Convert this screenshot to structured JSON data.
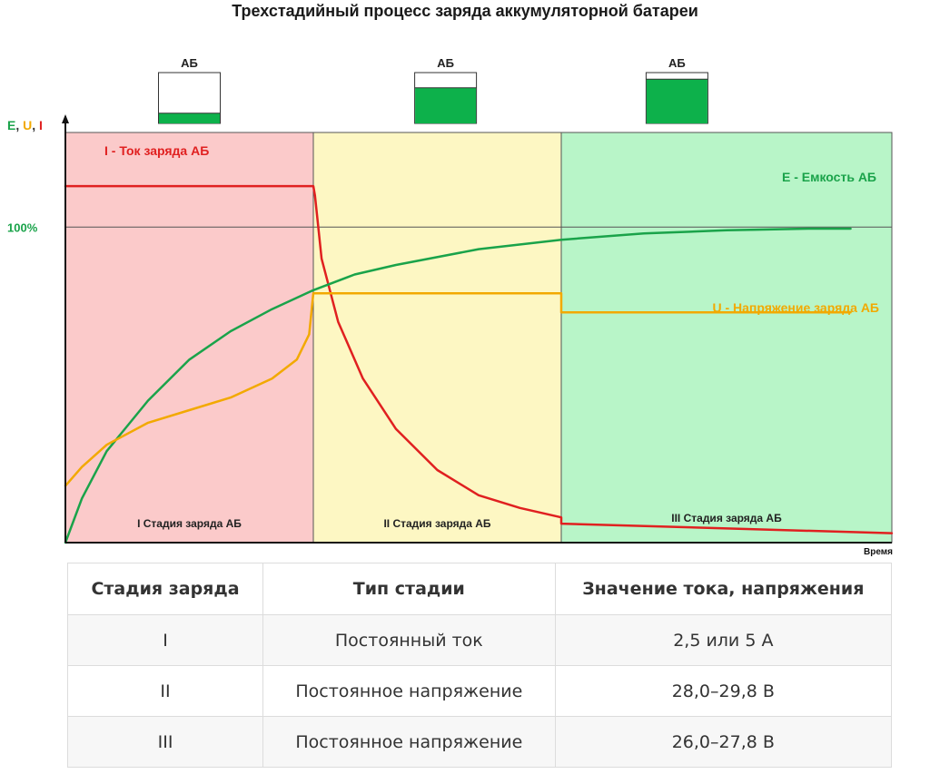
{
  "title": "Трехстадийный процесс заряда аккумуляторной батареи",
  "chart_data": {
    "type": "line",
    "title": "Трехстадийный процесс заряда аккумуляторной батареи",
    "xlabel": "Время",
    "y_axis_label_parts": [
      {
        "text": "E",
        "color": "#1aa34a"
      },
      {
        "text": ", ",
        "color": "#333333"
      },
      {
        "text": "U",
        "color": "#f2a900"
      },
      {
        "text": ", ",
        "color": "#333333"
      },
      {
        "text": "I",
        "color": "#e02020"
      }
    ],
    "y_tick_label": "100%",
    "y_tick_value": 100,
    "xlim": [
      0,
      100
    ],
    "ylim": [
      0,
      130
    ],
    "stages": [
      {
        "label": "I Стадия заряда АБ",
        "x_start": 0,
        "x_end": 30,
        "color": "#fbcaca"
      },
      {
        "label": "II Стадия заряда АБ",
        "x_start": 30,
        "x_end": 60,
        "color": "#fdf7c3"
      },
      {
        "label": "III Стадия заряда АБ",
        "x_start": 60,
        "x_end": 100,
        "color": "#b8f5c8"
      }
    ],
    "battery_icons": [
      {
        "label": "АБ",
        "fill_fraction": 0.2,
        "x_center": 15
      },
      {
        "label": "АБ",
        "fill_fraction": 0.7,
        "x_center": 46
      },
      {
        "label": "АБ",
        "fill_fraction": 0.87,
        "x_center": 74
      }
    ],
    "series": [
      {
        "name": "I - Ток заряда АБ",
        "color": "#e02020",
        "x": [
          0,
          30,
          30.2,
          31,
          33,
          36,
          40,
          45,
          50,
          55,
          60,
          60,
          100
        ],
        "y": [
          113,
          113,
          110,
          90,
          70,
          52,
          36,
          23,
          15,
          11,
          8,
          6,
          3
        ]
      },
      {
        "name": "E - Емкость АБ",
        "color": "#1aa34a",
        "x": [
          0,
          2,
          5,
          10,
          15,
          20,
          25,
          30,
          35,
          40,
          50,
          60,
          70,
          80,
          90,
          95
        ],
        "y": [
          0,
          14,
          29,
          45,
          58,
          67,
          74,
          80,
          85,
          88,
          93,
          96,
          98,
          99,
          99.5,
          99.5
        ]
      },
      {
        "name": "U - Напряжение заряда АБ",
        "color": "#f2a900",
        "x": [
          0,
          2,
          5,
          10,
          15,
          20,
          25,
          28,
          29.5,
          30,
          60,
          60,
          95
        ],
        "y": [
          18,
          24,
          31,
          38,
          42,
          46,
          52,
          58,
          66,
          79,
          79,
          73,
          73
        ]
      }
    ]
  },
  "table": {
    "headers": [
      "Стадия заряда",
      "Тип стадии",
      "Значение тока, напряжения"
    ],
    "rows": [
      [
        "I",
        "Постоянный ток",
        "2,5 или 5 А"
      ],
      [
        "II",
        "Постоянное напряжение",
        "28,0–29,8 В"
      ],
      [
        "III",
        "Постоянное напряжение",
        "26,0–27,8 В"
      ]
    ]
  }
}
